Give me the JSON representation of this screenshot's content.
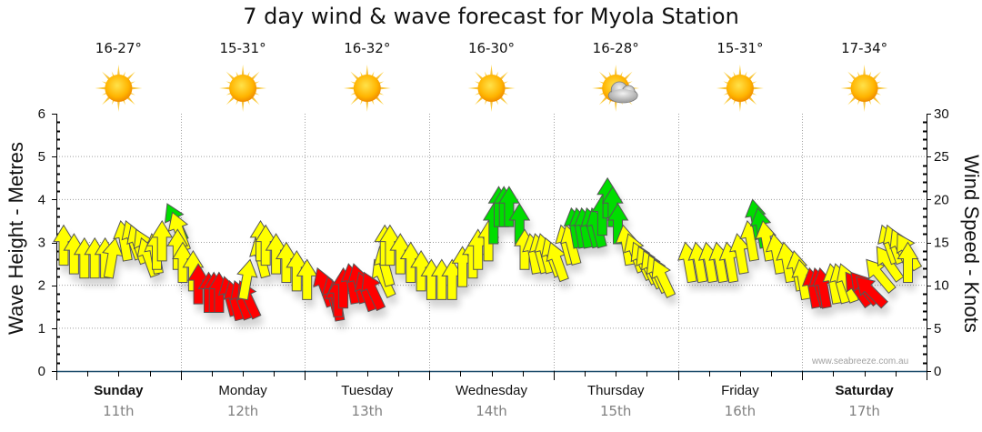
{
  "title": "7 day wind & wave forecast for Myola Station",
  "watermark": "www.seabreeze.com.au",
  "left_axis_label": "Wave Height - Metres",
  "right_axis_label": "Wind Speed - Knots",
  "days": [
    {
      "name": "Sunday",
      "date": "11th",
      "temp": "16-27°",
      "icon": "sun-icon",
      "bold": true
    },
    {
      "name": "Monday",
      "date": "12th",
      "temp": "15-31°",
      "icon": "sun-icon",
      "bold": false
    },
    {
      "name": "Tuesday",
      "date": "13th",
      "temp": "16-32°",
      "icon": "sun-icon",
      "bold": false
    },
    {
      "name": "Wednesday",
      "date": "14th",
      "temp": "16-30°",
      "icon": "sun-icon",
      "bold": false
    },
    {
      "name": "Thursday",
      "date": "15th",
      "temp": "16-28°",
      "icon": "partly-cloudy-icon",
      "bold": false
    },
    {
      "name": "Friday",
      "date": "16th",
      "temp": "15-31°",
      "icon": "sun-icon",
      "bold": false
    },
    {
      "name": "Saturday",
      "date": "17th",
      "temp": "17-34°",
      "icon": "sun-icon",
      "bold": true
    }
  ],
  "colors": {
    "light": "#ffff00",
    "moderate": "#00dd00",
    "strong": "#ff0000",
    "axis": "#1a4a6a",
    "grid": "#a0a0a0"
  },
  "chart_data": {
    "type": "scatter",
    "title": "7 day wind & wave forecast for Myola Station",
    "left_axis": {
      "label": "Wave Height - Metres",
      "range": [
        0,
        6
      ],
      "ticks": [
        "0",
        "1",
        "2",
        "3",
        "4",
        "5",
        "6"
      ]
    },
    "right_axis": {
      "label": "Wind Speed - Knots",
      "range": [
        0,
        30
      ],
      "ticks": [
        "0",
        "5",
        "10",
        "15",
        "20",
        "25",
        "30"
      ]
    },
    "x_categories": [
      "Sunday 11th",
      "Monday 12th",
      "Tuesday 13th",
      "Wednesday 14th",
      "Thursday 15th",
      "Friday 16th",
      "Saturday 17th"
    ],
    "grid": true,
    "series": [
      {
        "name": "Wind",
        "unit": "knots",
        "note": "arrows: speed (knots, tip position on right axis), direction (degrees the arrow points, 0 = up), color class",
        "points": [
          {
            "day": 0,
            "hour": 0,
            "speed": 17,
            "dir": 0,
            "cls": "light"
          },
          {
            "day": 0,
            "hour": 2,
            "speed": 16,
            "dir": 0,
            "cls": "light"
          },
          {
            "day": 0,
            "hour": 4,
            "speed": 15.5,
            "dir": 0,
            "cls": "light"
          },
          {
            "day": 0,
            "hour": 6,
            "speed": 15.5,
            "dir": 0,
            "cls": "light"
          },
          {
            "day": 0,
            "hour": 8,
            "speed": 15.5,
            "dir": 0,
            "cls": "light"
          },
          {
            "day": 0,
            "hour": 10,
            "speed": 15.5,
            "dir": 10,
            "cls": "light"
          },
          {
            "day": 0,
            "hour": 11,
            "speed": 17.5,
            "dir": -10,
            "cls": "light"
          },
          {
            "day": 0,
            "hour": 12,
            "speed": 17.5,
            "dir": -20,
            "cls": "light"
          },
          {
            "day": 0,
            "hour": 13,
            "speed": 17,
            "dir": -20,
            "cls": "light"
          },
          {
            "day": 0,
            "hour": 14,
            "speed": 16.5,
            "dir": -25,
            "cls": "light"
          },
          {
            "day": 0,
            "hour": 15,
            "speed": 15.5,
            "dir": -20,
            "cls": "light"
          },
          {
            "day": 0,
            "hour": 17,
            "speed": 16,
            "dir": -10,
            "cls": "light"
          },
          {
            "day": 0,
            "hour": 18,
            "speed": 16.5,
            "dir": 0,
            "cls": "light"
          },
          {
            "day": 0,
            "hour": 19,
            "speed": 17.5,
            "dir": 0,
            "cls": "light"
          },
          {
            "day": 0,
            "hour": 20,
            "speed": 19.5,
            "dir": -25,
            "cls": "moderate"
          },
          {
            "day": 0,
            "hour": 21,
            "speed": 18.5,
            "dir": -20,
            "cls": "light"
          },
          {
            "day": 0,
            "hour": 22,
            "speed": 16.5,
            "dir": 0,
            "cls": "light"
          },
          {
            "day": 0,
            "hour": 23,
            "speed": 15,
            "dir": 0,
            "cls": "light"
          },
          {
            "day": 1,
            "hour": 1,
            "speed": 14,
            "dir": 0,
            "cls": "light"
          },
          {
            "day": 1,
            "hour": 2,
            "speed": 12.5,
            "dir": 0,
            "cls": "strong"
          },
          {
            "day": 1,
            "hour": 4,
            "speed": 11.5,
            "dir": 0,
            "cls": "strong"
          },
          {
            "day": 1,
            "hour": 5,
            "speed": 11.5,
            "dir": 0,
            "cls": "strong"
          },
          {
            "day": 1,
            "hour": 6,
            "speed": 11.5,
            "dir": 0,
            "cls": "strong"
          },
          {
            "day": 1,
            "hour": 7,
            "speed": 11,
            "dir": -15,
            "cls": "strong"
          },
          {
            "day": 1,
            "hour": 8,
            "speed": 10.5,
            "dir": -15,
            "cls": "strong"
          },
          {
            "day": 1,
            "hour": 9,
            "speed": 10.5,
            "dir": -20,
            "cls": "strong"
          },
          {
            "day": 1,
            "hour": 10,
            "speed": 10.5,
            "dir": -25,
            "cls": "strong"
          },
          {
            "day": 1,
            "hour": 12,
            "speed": 13,
            "dir": 10,
            "cls": "light"
          },
          {
            "day": 1,
            "hour": 13,
            "speed": 15.5,
            "dir": -15,
            "cls": "light"
          },
          {
            "day": 1,
            "hour": 14,
            "speed": 17.5,
            "dir": 0,
            "cls": "light"
          },
          {
            "day": 1,
            "hour": 15,
            "speed": 17,
            "dir": 0,
            "cls": "light"
          },
          {
            "day": 1,
            "hour": 17,
            "speed": 16,
            "dir": 0,
            "cls": "light"
          },
          {
            "day": 1,
            "hour": 19,
            "speed": 15,
            "dir": 0,
            "cls": "light"
          },
          {
            "day": 1,
            "hour": 21,
            "speed": 14,
            "dir": 0,
            "cls": "light"
          },
          {
            "day": 1,
            "hour": 23,
            "speed": 13,
            "dir": 0,
            "cls": "light"
          },
          {
            "day": 2,
            "hour": 1,
            "speed": 12,
            "dir": -20,
            "cls": "strong"
          },
          {
            "day": 2,
            "hour": 3,
            "speed": 11,
            "dir": -15,
            "cls": "strong"
          },
          {
            "day": 2,
            "hour": 4,
            "speed": 10.5,
            "dir": -10,
            "cls": "strong"
          },
          {
            "day": 2,
            "hour": 5,
            "speed": 11,
            "dir": 0,
            "cls": "strong"
          },
          {
            "day": 2,
            "hour": 6,
            "speed": 12,
            "dir": 0,
            "cls": "strong"
          },
          {
            "day": 2,
            "hour": 7,
            "speed": 12.5,
            "dir": -10,
            "cls": "strong"
          },
          {
            "day": 2,
            "hour": 8,
            "speed": 12.5,
            "dir": -15,
            "cls": "strong"
          },
          {
            "day": 2,
            "hour": 9,
            "speed": 11.5,
            "dir": -20,
            "cls": "strong"
          },
          {
            "day": 2,
            "hour": 10,
            "speed": 11.5,
            "dir": -25,
            "cls": "strong"
          },
          {
            "day": 2,
            "hour": 12,
            "speed": 13,
            "dir": -25,
            "cls": "light"
          },
          {
            "day": 2,
            "hour": 13,
            "speed": 14.5,
            "dir": -15,
            "cls": "light"
          },
          {
            "day": 2,
            "hour": 14,
            "speed": 17,
            "dir": 0,
            "cls": "light"
          },
          {
            "day": 2,
            "hour": 15,
            "speed": 17,
            "dir": 0,
            "cls": "light"
          },
          {
            "day": 2,
            "hour": 17,
            "speed": 16,
            "dir": 0,
            "cls": "light"
          },
          {
            "day": 2,
            "hour": 19,
            "speed": 15,
            "dir": 0,
            "cls": "light"
          },
          {
            "day": 2,
            "hour": 21,
            "speed": 14,
            "dir": 0,
            "cls": "light"
          },
          {
            "day": 2,
            "hour": 23,
            "speed": 13,
            "dir": 0,
            "cls": "light"
          },
          {
            "day": 3,
            "hour": 1,
            "speed": 13,
            "dir": 0,
            "cls": "light"
          },
          {
            "day": 3,
            "hour": 3,
            "speed": 13,
            "dir": 0,
            "cls": "light"
          },
          {
            "day": 3,
            "hour": 5,
            "speed": 14.5,
            "dir": 0,
            "cls": "light"
          },
          {
            "day": 3,
            "hour": 7,
            "speed": 15.5,
            "dir": 0,
            "cls": "light"
          },
          {
            "day": 3,
            "hour": 8,
            "speed": 16.5,
            "dir": 0,
            "cls": "light"
          },
          {
            "day": 3,
            "hour": 10,
            "speed": 17.5,
            "dir": 0,
            "cls": "light"
          },
          {
            "day": 3,
            "hour": 11,
            "speed": 19.5,
            "dir": 0,
            "cls": "moderate"
          },
          {
            "day": 3,
            "hour": 12,
            "speed": 21.5,
            "dir": 0,
            "cls": "moderate"
          },
          {
            "day": 3,
            "hour": 13,
            "speed": 21.5,
            "dir": 0,
            "cls": "moderate"
          },
          {
            "day": 3,
            "hour": 14,
            "speed": 21.5,
            "dir": 0,
            "cls": "moderate"
          },
          {
            "day": 3,
            "hour": 16,
            "speed": 19.5,
            "dir": 0,
            "cls": "moderate"
          },
          {
            "day": 3,
            "hour": 17,
            "speed": 16.5,
            "dir": 0,
            "cls": "light"
          },
          {
            "day": 3,
            "hour": 18,
            "speed": 16,
            "dir": -10,
            "cls": "light"
          },
          {
            "day": 3,
            "hour": 19,
            "speed": 16,
            "dir": -15,
            "cls": "light"
          },
          {
            "day": 3,
            "hour": 20,
            "speed": 16,
            "dir": -15,
            "cls": "light"
          },
          {
            "day": 3,
            "hour": 21,
            "speed": 15.5,
            "dir": -20,
            "cls": "light"
          },
          {
            "day": 3,
            "hour": 22,
            "speed": 15,
            "dir": -20,
            "cls": "light"
          },
          {
            "day": 4,
            "hour": 0,
            "speed": 17,
            "dir": -15,
            "cls": "light"
          },
          {
            "day": 4,
            "hour": 1,
            "speed": 17,
            "dir": -15,
            "cls": "light"
          },
          {
            "day": 4,
            "hour": 2,
            "speed": 19,
            "dir": -10,
            "cls": "moderate"
          },
          {
            "day": 4,
            "hour": 3,
            "speed": 19,
            "dir": -10,
            "cls": "moderate"
          },
          {
            "day": 4,
            "hour": 4,
            "speed": 19,
            "dir": -10,
            "cls": "moderate"
          },
          {
            "day": 4,
            "hour": 5,
            "speed": 19,
            "dir": -15,
            "cls": "moderate"
          },
          {
            "day": 4,
            "hour": 6,
            "speed": 19,
            "dir": -15,
            "cls": "moderate"
          },
          {
            "day": 4,
            "hour": 8,
            "speed": 20.5,
            "dir": 0,
            "cls": "moderate"
          },
          {
            "day": 4,
            "hour": 9,
            "speed": 22.5,
            "dir": 0,
            "cls": "moderate"
          },
          {
            "day": 4,
            "hour": 10,
            "speed": 21.5,
            "dir": 0,
            "cls": "moderate"
          },
          {
            "day": 4,
            "hour": 11,
            "speed": 19.5,
            "dir": 0,
            "cls": "moderate"
          },
          {
            "day": 4,
            "hour": 12,
            "speed": 17,
            "dir": -10,
            "cls": "light"
          },
          {
            "day": 4,
            "hour": 13,
            "speed": 16,
            "dir": -20,
            "cls": "light"
          },
          {
            "day": 4,
            "hour": 14,
            "speed": 15,
            "dir": -25,
            "cls": "light"
          },
          {
            "day": 4,
            "hour": 15,
            "speed": 14.5,
            "dir": -25,
            "cls": "light"
          },
          {
            "day": 4,
            "hour": 16,
            "speed": 14,
            "dir": -25,
            "cls": "light"
          },
          {
            "day": 4,
            "hour": 17,
            "speed": 13.5,
            "dir": -25,
            "cls": "light"
          },
          {
            "day": 4,
            "hour": 18,
            "speed": 13,
            "dir": -25,
            "cls": "light"
          },
          {
            "day": 5,
            "hour": 0,
            "speed": 15,
            "dir": -10,
            "cls": "light"
          },
          {
            "day": 5,
            "hour": 2,
            "speed": 15,
            "dir": -10,
            "cls": "light"
          },
          {
            "day": 5,
            "hour": 4,
            "speed": 15,
            "dir": -10,
            "cls": "light"
          },
          {
            "day": 5,
            "hour": 6,
            "speed": 15,
            "dir": -10,
            "cls": "light"
          },
          {
            "day": 5,
            "hour": 8,
            "speed": 15,
            "dir": -10,
            "cls": "light"
          },
          {
            "day": 5,
            "hour": 10,
            "speed": 16,
            "dir": -10,
            "cls": "light"
          },
          {
            "day": 5,
            "hour": 12,
            "speed": 17.5,
            "dir": -10,
            "cls": "light"
          },
          {
            "day": 5,
            "hour": 13,
            "speed": 20,
            "dir": -10,
            "cls": "moderate"
          },
          {
            "day": 5,
            "hour": 14,
            "speed": 19,
            "dir": -10,
            "cls": "moderate"
          },
          {
            "day": 5,
            "hour": 15,
            "speed": 17.5,
            "dir": -10,
            "cls": "light"
          },
          {
            "day": 5,
            "hour": 17,
            "speed": 16,
            "dir": -10,
            "cls": "light"
          },
          {
            "day": 5,
            "hour": 19,
            "speed": 15,
            "dir": -10,
            "cls": "light"
          },
          {
            "day": 5,
            "hour": 21,
            "speed": 14,
            "dir": -10,
            "cls": "light"
          },
          {
            "day": 5,
            "hour": 22,
            "speed": 13,
            "dir": -10,
            "cls": "light"
          },
          {
            "day": 6,
            "hour": 0,
            "speed": 12,
            "dir": -10,
            "cls": "strong"
          },
          {
            "day": 6,
            "hour": 1,
            "speed": 12,
            "dir": -15,
            "cls": "strong"
          },
          {
            "day": 6,
            "hour": 2,
            "speed": 12,
            "dir": -10,
            "cls": "strong"
          },
          {
            "day": 6,
            "hour": 4,
            "speed": 12.5,
            "dir": -10,
            "cls": "light"
          },
          {
            "day": 6,
            "hour": 5,
            "speed": 12.5,
            "dir": -15,
            "cls": "light"
          },
          {
            "day": 6,
            "hour": 6,
            "speed": 12.5,
            "dir": -20,
            "cls": "light"
          },
          {
            "day": 6,
            "hour": 7,
            "speed": 11.5,
            "dir": -35,
            "cls": "strong"
          },
          {
            "day": 6,
            "hour": 8,
            "speed": 11.5,
            "dir": -40,
            "cls": "strong"
          },
          {
            "day": 6,
            "hour": 9,
            "speed": 11,
            "dir": -45,
            "cls": "strong"
          },
          {
            "day": 6,
            "hour": 11,
            "speed": 13,
            "dir": -40,
            "cls": "light"
          },
          {
            "day": 6,
            "hour": 13,
            "speed": 14.5,
            "dir": -35,
            "cls": "light"
          },
          {
            "day": 6,
            "hour": 14,
            "speed": 17,
            "dir": -20,
            "cls": "light"
          },
          {
            "day": 6,
            "hour": 15,
            "speed": 17,
            "dir": -20,
            "cls": "light"
          },
          {
            "day": 6,
            "hour": 16,
            "speed": 16.5,
            "dir": -25,
            "cls": "light"
          },
          {
            "day": 6,
            "hour": 17,
            "speed": 16,
            "dir": -30,
            "cls": "light"
          },
          {
            "day": 6,
            "hour": 19,
            "speed": 15,
            "dir": 0,
            "cls": "light"
          }
        ]
      }
    ]
  }
}
